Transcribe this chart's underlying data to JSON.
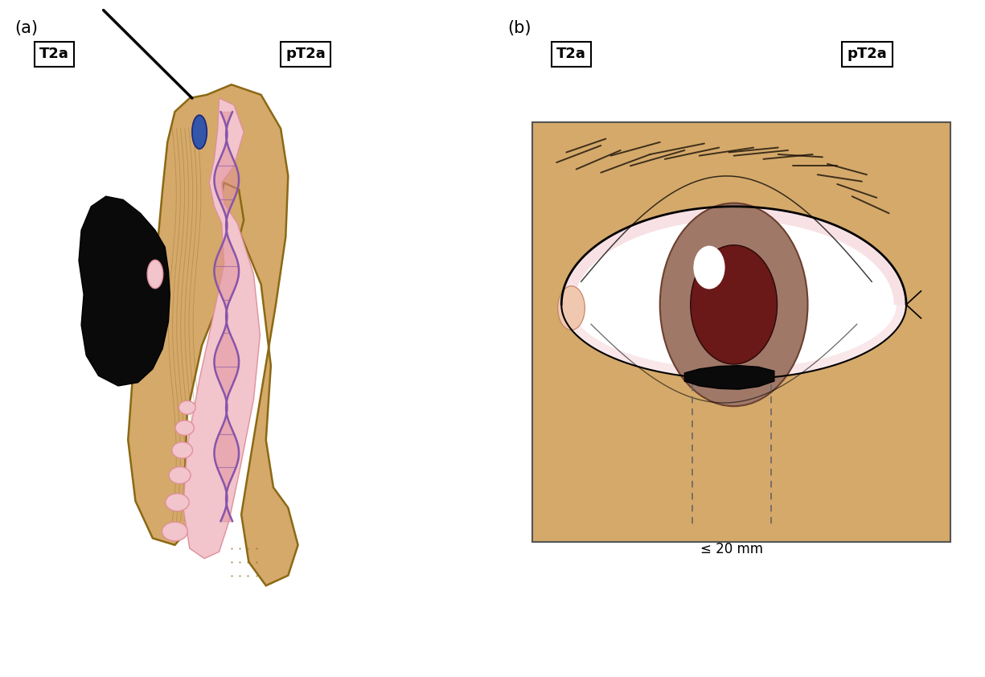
{
  "bg_color": "#ffffff",
  "skin_color": "#D4A96A",
  "skin_light": "#E8C99A",
  "skin_outline": "#8B6914",
  "pink_light": "#F2C4CC",
  "pink_medium": "#E0909A",
  "pink_dark": "#C87890",
  "purple_color": "#8855AA",
  "blue_color": "#3355AA",
  "black_tumor": "#0a0a0a",
  "iris_outer": "#A07868",
  "iris_inner": "#6B1818",
  "sclera_color": "#FFFFFF",
  "label_a": "(a)",
  "label_b": "(b)",
  "tag_T2a": "T2a",
  "tag_pT2a": "pT2a",
  "measurement_label": "≤ 20 mm"
}
